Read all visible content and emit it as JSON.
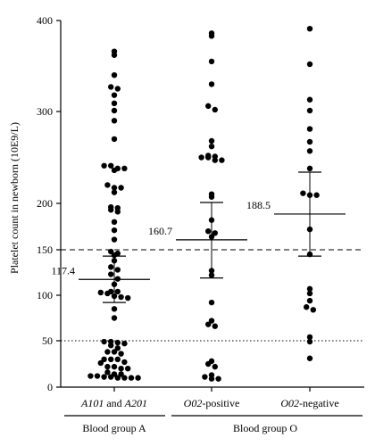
{
  "chart_data": {
    "type": "scatter",
    "title": "",
    "ylabel": "Platelet count in newborn (10E9/L)",
    "xlabel": "",
    "ylim": [
      0,
      400
    ],
    "yticks": [
      "0",
      "50",
      "100",
      "150",
      "200",
      "300",
      "400"
    ],
    "yticks_values": [
      0,
      50,
      100,
      150,
      200,
      300,
      400
    ],
    "reference_lines": [
      {
        "value": 150,
        "style": "dashed"
      },
      {
        "value": 50,
        "style": "dotted"
      }
    ],
    "categories": [
      {
        "italic": "A101",
        "rest": " and ",
        "italic2": "A201"
      },
      {
        "italic": "O02",
        "rest": "-positive",
        "italic2": ""
      },
      {
        "italic": "O02",
        "rest": "-negative",
        "italic2": ""
      }
    ],
    "groups": [
      "Blood group A",
      "Blood group O"
    ],
    "series": [
      {
        "median": 117.4,
        "median_label": "117.4",
        "q1": 92,
        "q3": 143,
        "values": [
          366,
          362,
          340,
          327,
          325,
          318,
          309,
          301,
          290,
          270,
          241,
          241,
          238,
          238,
          236,
          220,
          217,
          217,
          212,
          196,
          195,
          193,
          191,
          180,
          171,
          161,
          148,
          146,
          144,
          138,
          131,
          128,
          123,
          118,
          112,
          104,
          104,
          103,
          102,
          99,
          98,
          97,
          85,
          75,
          49,
          49,
          48,
          47,
          45,
          42,
          38,
          38,
          36,
          30,
          30,
          30,
          27,
          26,
          22,
          22,
          20,
          20,
          16,
          14,
          14,
          12,
          12,
          11,
          11,
          10,
          10,
          10,
          10
        ]
      },
      {
        "median": 160.7,
        "median_label": "160.7",
        "q1": 119,
        "q3": 201,
        "values": [
          386,
          383,
          355,
          330,
          306,
          302,
          268,
          262,
          252,
          251,
          250,
          250,
          247,
          247,
          210,
          207,
          182,
          170,
          168,
          164,
          127,
          122,
          92,
          72,
          68,
          66,
          28,
          25,
          22,
          13,
          11,
          9,
          9
        ]
      },
      {
        "median": 188.5,
        "median_label": "188.5",
        "q1": 143,
        "q3": 234,
        "values": [
          391,
          352,
          313,
          301,
          281,
          267,
          257,
          238,
          211,
          209,
          209,
          172,
          145,
          107,
          102,
          94,
          87,
          84,
          54,
          49,
          31
        ]
      }
    ]
  }
}
